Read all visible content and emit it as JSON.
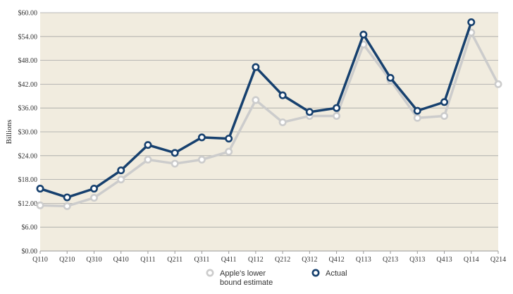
{
  "chart_data": {
    "type": "line",
    "title": "",
    "xlabel": "",
    "ylabel": "Billions",
    "categories": [
      "Q110",
      "Q210",
      "Q310",
      "Q410",
      "Q111",
      "Q211",
      "Q311",
      "Q411",
      "Q112",
      "Q212",
      "Q312",
      "Q412",
      "Q113",
      "Q213",
      "Q313",
      "Q413",
      "Q114",
      "Q214"
    ],
    "ylim": [
      0,
      60
    ],
    "yticks": [
      0,
      6,
      12,
      18,
      24,
      30,
      36,
      42,
      48,
      54,
      60
    ],
    "ytick_labels": [
      "$0.00",
      "$6.00",
      "$12.00",
      "$18.00",
      "$24.00",
      "$30.00",
      "$36.00",
      "$42.00",
      "$48.00",
      "$54.00",
      "$60.00"
    ],
    "grid": true,
    "background_color": "#f1ecdf",
    "grid_color": "#a5a5a5",
    "legend_position": "bottom-center",
    "series": [
      {
        "name": "Apple's lower bound estimate",
        "legend_lines": [
          "Apple's lower",
          "bound estimate"
        ],
        "color": "#cccccc",
        "values": [
          11.5,
          11.3,
          13.4,
          18.0,
          23.0,
          22.0,
          23.0,
          25.0,
          38.0,
          32.4,
          34.0,
          34.0,
          52.0,
          43.0,
          33.5,
          34.0,
          55.0,
          42.0
        ]
      },
      {
        "name": "Actual",
        "legend_lines": [
          "Actual"
        ],
        "color": "#16406e",
        "values": [
          15.7,
          13.5,
          15.7,
          20.3,
          26.7,
          24.7,
          28.6,
          28.3,
          46.3,
          39.2,
          35.0,
          36.0,
          54.5,
          43.6,
          35.3,
          37.5,
          57.6,
          null
        ]
      }
    ]
  }
}
